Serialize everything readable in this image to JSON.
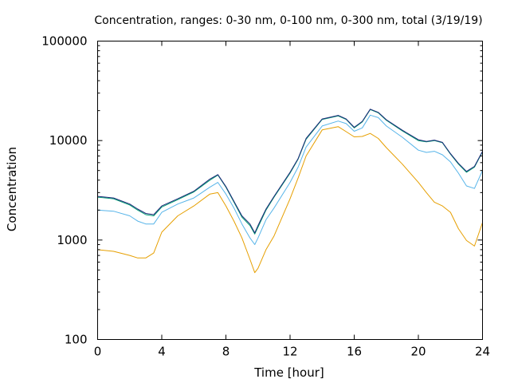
{
  "chart_data": {
    "type": "line",
    "title": "Concentration, ranges: 0-30 nm, 0-100 nm, 0-300 nm, total (3/19/19)",
    "xlabel": "Time [hour]",
    "ylabel": "Concentration",
    "xlim": [
      0,
      24
    ],
    "ylim": [
      100,
      100000
    ],
    "yscale": "log",
    "x_ticks": [
      0,
      4,
      8,
      12,
      16,
      20,
      24
    ],
    "x_tick_labels": [
      "0",
      "4",
      "8",
      "12",
      "16",
      "20",
      "24"
    ],
    "y_ticks": [
      100,
      1000,
      10000,
      100000
    ],
    "y_tick_labels": [
      "100",
      "1000",
      "10000",
      "100000"
    ],
    "grid": false,
    "legend": "none",
    "x": [
      0,
      1,
      2,
      2.5,
      3,
      3.5,
      4,
      5,
      6,
      7,
      7.5,
      8,
      8.5,
      9,
      9.5,
      9.8,
      10,
      10.5,
      11,
      12,
      12.5,
      13,
      14,
      15,
      15.5,
      16,
      16.5,
      17,
      17.5,
      18,
      19,
      20,
      20.5,
      21,
      21.5,
      22,
      22.5,
      23,
      23.5,
      24
    ],
    "series": [
      {
        "color": "#e69f00",
        "values": [
          800,
          770,
          700,
          660,
          660,
          740,
          1200,
          1750,
          2200,
          2900,
          3000,
          2200,
          1550,
          1050,
          640,
          470,
          520,
          800,
          1100,
          2600,
          4200,
          7000,
          12800,
          13800,
          12300,
          10900,
          11000,
          11800,
          10500,
          8500,
          5800,
          3800,
          3000,
          2400,
          2200,
          1900,
          1300,
          990,
          870,
          1500
        ]
      },
      {
        "color": "#56b4e9",
        "values": [
          2000,
          1950,
          1750,
          1550,
          1450,
          1450,
          1900,
          2300,
          2650,
          3400,
          3800,
          2900,
          2100,
          1450,
          1050,
          900,
          1050,
          1600,
          2100,
          3800,
          5400,
          8600,
          14000,
          15700,
          14800,
          12400,
          13400,
          18000,
          17000,
          14000,
          10800,
          8000,
          7600,
          7800,
          7200,
          6100,
          4700,
          3500,
          3300,
          5000
        ]
      },
      {
        "color": "#009e73",
        "values": [
          2700,
          2600,
          2250,
          2000,
          1800,
          1750,
          2150,
          2550,
          3050,
          4000,
          4500,
          3400,
          2400,
          1700,
          1400,
          1150,
          1350,
          2000,
          2700,
          4700,
          6500,
          10300,
          16300,
          17700,
          16300,
          13400,
          15400,
          20500,
          19000,
          16000,
          12500,
          10000,
          9700,
          10000,
          9500,
          7300,
          5800,
          4800,
          5400,
          7700
        ]
      },
      {
        "color": "#1f2a7a",
        "values": [
          2750,
          2650,
          2300,
          2050,
          1850,
          1800,
          2200,
          2600,
          3100,
          4100,
          4550,
          3450,
          2450,
          1750,
          1450,
          1180,
          1400,
          2050,
          2750,
          4800,
          6600,
          10500,
          16500,
          17900,
          16500,
          13600,
          15600,
          20700,
          19200,
          16200,
          12700,
          10200,
          9800,
          10100,
          9600,
          7400,
          5900,
          4900,
          5500,
          7800
        ]
      }
    ]
  }
}
